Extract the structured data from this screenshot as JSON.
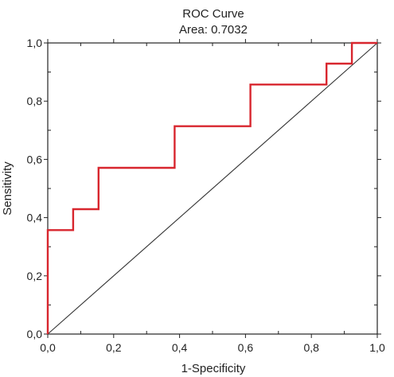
{
  "chart_data": {
    "type": "line",
    "title": "ROC Curve",
    "subtitle": "Area: 0.7032",
    "xlabel": "1-Specificity",
    "ylabel": "Sensitivity",
    "xlim": [
      0,
      1
    ],
    "ylim": [
      0,
      1
    ],
    "x_ticks": [
      "0,0",
      "0,2",
      "0,4",
      "0,6",
      "0,8",
      "1,0"
    ],
    "y_ticks": [
      "0,0",
      "0,2",
      "0,4",
      "0,6",
      "0,8",
      "1,0"
    ],
    "grid": false,
    "series": [
      {
        "color": "#d8262e",
        "step": true,
        "points": [
          [
            0.0,
            0.0
          ],
          [
            0.0,
            0.357
          ],
          [
            0.077,
            0.357
          ],
          [
            0.077,
            0.429
          ],
          [
            0.154,
            0.429
          ],
          [
            0.154,
            0.571
          ],
          [
            0.385,
            0.571
          ],
          [
            0.385,
            0.714
          ],
          [
            0.615,
            0.714
          ],
          [
            0.615,
            0.857
          ],
          [
            0.846,
            0.857
          ],
          [
            0.846,
            0.929
          ],
          [
            0.923,
            0.929
          ],
          [
            0.923,
            1.0
          ],
          [
            1.0,
            1.0
          ]
        ]
      },
      {
        "color": "#333333",
        "points": [
          [
            0,
            0
          ],
          [
            1,
            1
          ]
        ]
      }
    ]
  }
}
